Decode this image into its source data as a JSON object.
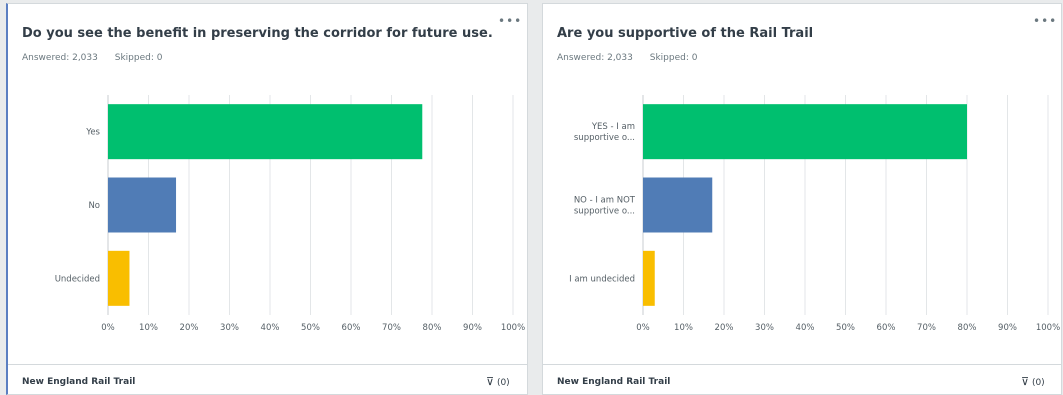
{
  "chart_data": [
    {
      "type": "bar",
      "orientation": "horizontal",
      "title": "Do you see the benefit in preserving the corridor for future use.",
      "answered": "Answered: 2,033",
      "skipped": "Skipped: 0",
      "categories": [
        "Yes",
        "No",
        "Undecided"
      ],
      "values": [
        77.6,
        16.8,
        5.3
      ],
      "colors": [
        "#00bf6f",
        "#507cb6",
        "#f9be00"
      ],
      "xlim": [
        0,
        100
      ],
      "x_ticks": [
        "0%",
        "10%",
        "20%",
        "30%",
        "40%",
        "50%",
        "60%",
        "70%",
        "80%",
        "90%",
        "100%"
      ],
      "grid": true,
      "legend": "none",
      "footer": "New England Rail Trail",
      "filter_label": "(0)"
    },
    {
      "type": "bar",
      "orientation": "horizontal",
      "title": "Are you supportive of the Rail Trail",
      "answered": "Answered: 2,033",
      "skipped": "Skipped: 0",
      "categories": [
        [
          "YES - I am",
          "supportive o..."
        ],
        [
          "NO - I am NOT",
          "supportive o..."
        ],
        [
          "I am undecided"
        ]
      ],
      "values": [
        80.0,
        17.1,
        2.9
      ],
      "colors": [
        "#00bf6f",
        "#507cb6",
        "#f9be00"
      ],
      "xlim": [
        0,
        100
      ],
      "x_ticks": [
        "0%",
        "10%",
        "20%",
        "30%",
        "40%",
        "50%",
        "60%",
        "70%",
        "80%",
        "90%",
        "100%"
      ],
      "grid": true,
      "legend": "none",
      "footer": "New England Rail Trail",
      "filter_label": "(0)"
    }
  ],
  "icons": {
    "more": "more-icon",
    "filter": "filter-icon"
  }
}
